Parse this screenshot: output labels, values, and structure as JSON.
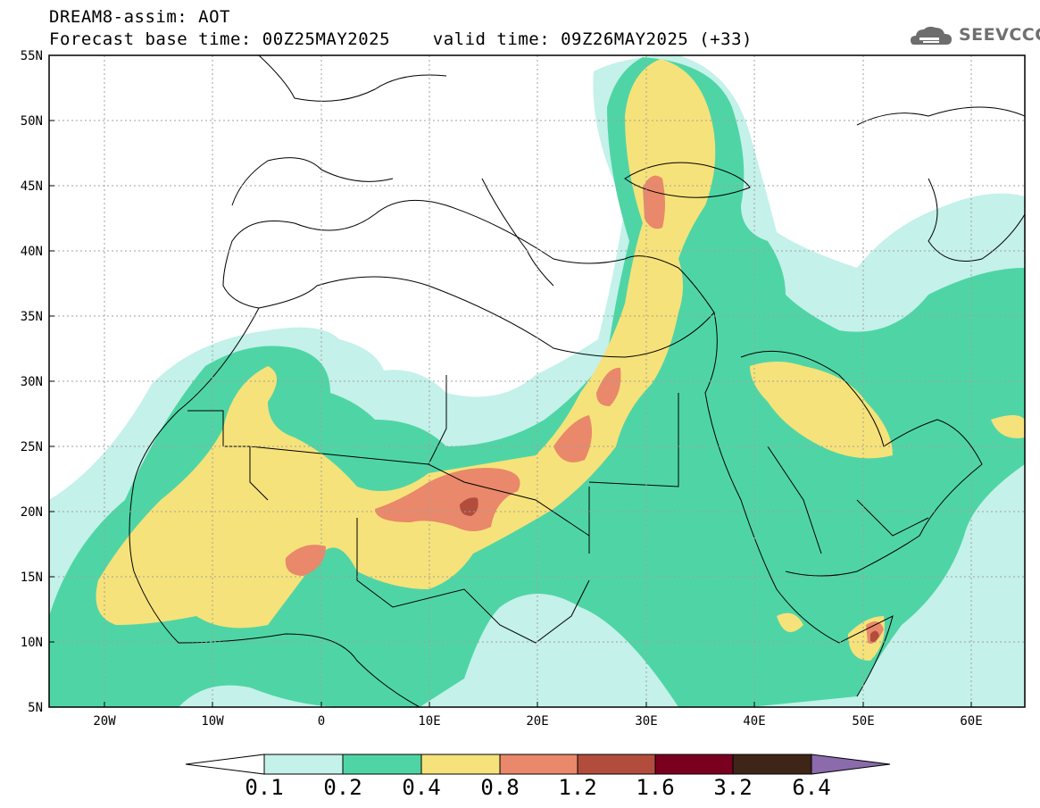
{
  "header": {
    "title": "DREAM8-assim: AOT",
    "subtitle": "Forecast base time: 00Z25MAY2025    valid time: 09Z26MAY2025 (+33)"
  },
  "logo": {
    "text": "SEEVCCC",
    "icon": "cloud-icon"
  },
  "map": {
    "lat_range": [
      5,
      55
    ],
    "lon_range": [
      -25,
      65
    ],
    "lat_ticks": [
      "5N",
      "10N",
      "15N",
      "20N",
      "25N",
      "30N",
      "35N",
      "40N",
      "45N",
      "50N",
      "55N"
    ],
    "lon_ticks": [
      "20W",
      "10W",
      "0",
      "10E",
      "20E",
      "30E",
      "40E",
      "50E",
      "60E"
    ]
  },
  "colorbar": {
    "labels": [
      "0.1",
      "0.2",
      "0.4",
      "0.8",
      "1.2",
      "1.6",
      "3.2",
      "6.4"
    ],
    "colors": [
      "#ffffff",
      "#c4f1ea",
      "#4fd5a5",
      "#f6e27a",
      "#e9886a",
      "#b24d3d",
      "#7a0020",
      "#3e2517",
      "#8b6bab"
    ]
  }
}
